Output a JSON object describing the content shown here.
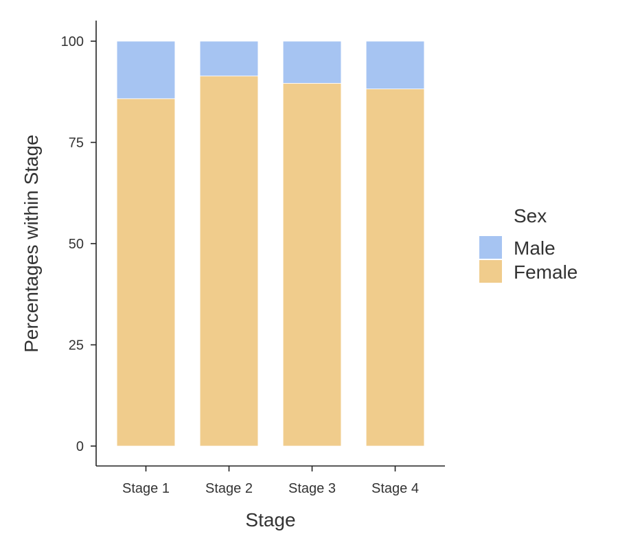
{
  "chart_data": {
    "type": "bar",
    "stacked": true,
    "xlabel": "Stage",
    "ylabel": "Percentages within Stage",
    "categories": [
      "Stage 1",
      "Stage 2",
      "Stage 3",
      "Stage 4"
    ],
    "series": [
      {
        "name": "Female",
        "values": [
          85.8,
          91.4,
          89.6,
          88.2
        ],
        "color": "#F0CC8C"
      },
      {
        "name": "Male",
        "values": [
          14.2,
          8.6,
          10.4,
          11.8
        ],
        "color": "#A6C4F2"
      }
    ],
    "ylim": [
      0,
      100
    ],
    "yticks": [
      0,
      25,
      50,
      75,
      100
    ],
    "grid": false,
    "legend": {
      "title": "Sex",
      "position": "right",
      "items": [
        {
          "label": "Male",
          "color": "#A6C4F2"
        },
        {
          "label": "Female",
          "color": "#F0CC8C"
        }
      ]
    }
  }
}
